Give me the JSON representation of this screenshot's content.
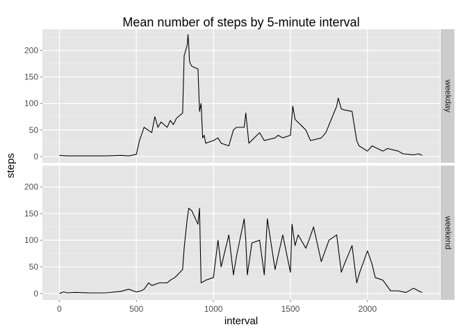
{
  "chart_data": {
    "type": "line",
    "title": "Mean number of steps by 5-minute interval",
    "xlabel": "interval",
    "ylabel": "steps",
    "xlim": [
      -110,
      2470
    ],
    "ylim": [
      -12,
      240
    ],
    "x_ticks": [
      0,
      500,
      1000,
      1500,
      2000
    ],
    "y_ticks": [
      0,
      50,
      100,
      150,
      200
    ],
    "grid": true,
    "facets": [
      "weekday",
      "weekend"
    ],
    "series": [
      {
        "facet": "weekday",
        "x": [
          0,
          50,
          100,
          200,
          300,
          400,
          450,
          500,
          520,
          550,
          600,
          620,
          640,
          660,
          700,
          720,
          740,
          760,
          800,
          810,
          820,
          830,
          835,
          840,
          845,
          850,
          860,
          900,
          910,
          920,
          930,
          940,
          950,
          1000,
          1030,
          1050,
          1100,
          1130,
          1150,
          1200,
          1210,
          1230,
          1300,
          1330,
          1400,
          1420,
          1450,
          1500,
          1515,
          1530,
          1600,
          1630,
          1700,
          1730,
          1800,
          1810,
          1830,
          1845,
          1900,
          1930,
          1945,
          2000,
          2030,
          2100,
          2130,
          2200,
          2230,
          2300,
          2330,
          2355
        ],
        "y": [
          2,
          1,
          1,
          1,
          1,
          2,
          1,
          4,
          30,
          55,
          45,
          75,
          55,
          65,
          55,
          68,
          60,
          72,
          82,
          190,
          200,
          210,
          230,
          210,
          180,
          175,
          170,
          165,
          85,
          100,
          35,
          40,
          25,
          30,
          35,
          25,
          20,
          50,
          55,
          55,
          82,
          25,
          45,
          30,
          35,
          40,
          35,
          40,
          95,
          70,
          50,
          30,
          35,
          45,
          95,
          110,
          90,
          88,
          85,
          30,
          20,
          10,
          20,
          10,
          15,
          10,
          5,
          3,
          5,
          2
        ]
      },
      {
        "facet": "weekend",
        "x": [
          0,
          30,
          50,
          100,
          200,
          300,
          400,
          450,
          500,
          530,
          550,
          580,
          600,
          650,
          700,
          720,
          750,
          800,
          810,
          830,
          840,
          860,
          900,
          910,
          920,
          950,
          1000,
          1030,
          1050,
          1100,
          1130,
          1150,
          1200,
          1210,
          1220,
          1250,
          1300,
          1330,
          1350,
          1400,
          1450,
          1500,
          1510,
          1530,
          1550,
          1600,
          1620,
          1650,
          1700,
          1750,
          1800,
          1830,
          1850,
          1900,
          1930,
          1950,
          2000,
          2030,
          2050,
          2100,
          2150,
          2200,
          2250,
          2300,
          2330,
          2355
        ],
        "y": [
          0,
          3,
          1,
          2,
          1,
          1,
          4,
          8,
          3,
          5,
          8,
          20,
          15,
          20,
          20,
          25,
          30,
          45,
          85,
          140,
          160,
          155,
          130,
          160,
          20,
          25,
          30,
          100,
          50,
          110,
          35,
          70,
          140,
          100,
          35,
          95,
          100,
          35,
          140,
          45,
          110,
          40,
          130,
          90,
          110,
          85,
          100,
          125,
          60,
          100,
          110,
          40,
          55,
          90,
          20,
          40,
          80,
          55,
          30,
          25,
          5,
          5,
          2,
          10,
          5,
          2
        ]
      }
    ]
  }
}
